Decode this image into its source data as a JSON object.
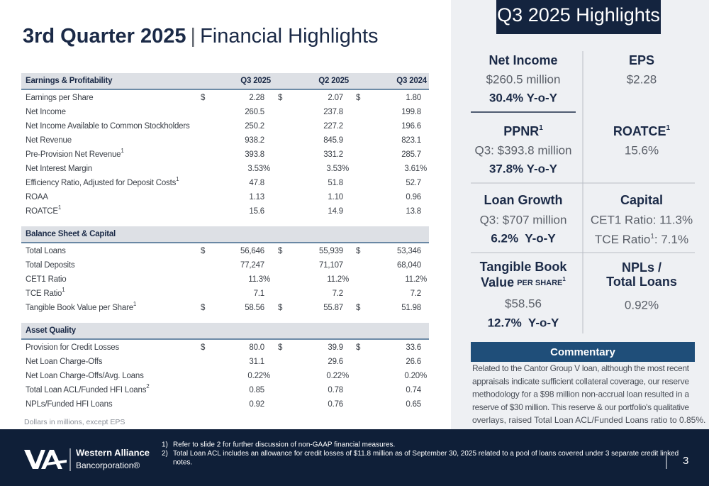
{
  "header": {
    "title_bold": "3rd Quarter 2025",
    "separator": "|",
    "title_rest": "Financial Highlights"
  },
  "table": {
    "columns": [
      "Q3 2025",
      "Q2 2025",
      "Q3 2024"
    ],
    "sections": [
      {
        "title": "Earnings & Profitability",
        "rows": [
          {
            "label": "Earnings per Share",
            "currency": "$",
            "values": [
              "2.28",
              "2.07",
              "1.80"
            ]
          },
          {
            "label": "Net Income",
            "values": [
              "260.5",
              "237.8",
              "199.8"
            ]
          },
          {
            "label": "Net Income Available to Common Stockholders",
            "values": [
              "250.2",
              "227.2",
              "196.6"
            ]
          },
          {
            "label": "Net Revenue",
            "values": [
              "938.2",
              "845.9",
              "823.1"
            ]
          },
          {
            "label": "Pre-Provision Net Revenue",
            "note": "1",
            "values": [
              "393.8",
              "331.2",
              "285.7"
            ]
          },
          {
            "label": "Net Interest Margin",
            "values": [
              "3.53%",
              "3.53%",
              "3.61%"
            ]
          },
          {
            "label": "Efficiency Ratio, Adjusted for Deposit Costs",
            "note": "1",
            "values": [
              "47.8",
              "51.8",
              "52.7"
            ]
          },
          {
            "label": "ROAA",
            "values": [
              "1.13",
              "1.10",
              "0.96"
            ]
          },
          {
            "label": "ROATCE",
            "note": "1",
            "values": [
              "15.6",
              "14.9",
              "13.8"
            ]
          }
        ]
      },
      {
        "title": "Balance Sheet & Capital",
        "rows": [
          {
            "label": "Total Loans",
            "currency": "$",
            "values": [
              "56,646",
              "55,939",
              "53,346"
            ]
          },
          {
            "label": "Total Deposits",
            "values": [
              "77,247",
              "71,107",
              "68,040"
            ]
          },
          {
            "label": "CET1 Ratio",
            "values": [
              "11.3%",
              "11.2%",
              "11.2%"
            ]
          },
          {
            "label": "TCE Ratio",
            "note": "1",
            "values": [
              "7.1",
              "7.2",
              "7.2"
            ]
          },
          {
            "label": "Tangible Book Value per Share",
            "note": "1",
            "currency": "$",
            "values": [
              "58.56",
              "55.87",
              "51.98"
            ]
          }
        ]
      },
      {
        "title": "Asset Quality",
        "rows": [
          {
            "label": "Provision for Credit Losses",
            "currency": "$",
            "values": [
              "80.0",
              "39.9",
              "33.6"
            ]
          },
          {
            "label": "Net Loan Charge-Offs",
            "values": [
              "31.1",
              "29.6",
              "26.6"
            ]
          },
          {
            "label": "Net Loan Charge-Offs/Avg. Loans",
            "values": [
              "0.22%",
              "0.22%",
              "0.20%"
            ]
          },
          {
            "label": "Total Loan ACL/Funded HFI Loans",
            "note": "2",
            "values": [
              "0.85",
              "0.78",
              "0.74"
            ]
          },
          {
            "label": "NPLs/Funded HFI Loans",
            "values": [
              "0.92",
              "0.76",
              "0.65"
            ]
          }
        ]
      }
    ],
    "note": "Dollars in millions, except EPS"
  },
  "highlights": {
    "title": "Q3 2025 Highlights",
    "cells": [
      {
        "title": "Net Income",
        "lines": [
          "$260.5 million",
          "30.4% Y-o-Y"
        ]
      },
      {
        "title": "EPS",
        "lines": [
          "$2.28"
        ]
      },
      {
        "title": "PPNR",
        "title_note": "1",
        "lines": [
          "Q3: $393.8 million",
          "37.8% Y-o-Y"
        ]
      },
      {
        "title": "ROATCE",
        "title_note": "1",
        "lines": [
          "15.6%"
        ]
      },
      {
        "title": "Loan Growth",
        "lines": [
          "Q3: $707 million",
          "6.2%  Y-o-Y"
        ]
      },
      {
        "title": "Capital",
        "lines": [
          "CET1 Ratio: 11.3%"
        ],
        "tce": {
          "label": "TCE Ratio",
          "note": "1",
          "value": ": 7.1%"
        }
      },
      {
        "title": [
          "Tangible Book",
          "Value"
        ],
        "title_small": "PER SHARE",
        "title_note": "1",
        "lines": [
          "$58.56",
          "12.7%  Y-o-Y"
        ]
      },
      {
        "title": [
          "NPLs /",
          "Total Loans"
        ],
        "lines": [
          "0.92%"
        ]
      }
    ]
  },
  "commentary": {
    "title": "Commentary",
    "lines": [
      "Related to the Cantor Group V loan, although the most recent",
      "appraisals indicate sufficient collateral coverage, our reserve",
      "methodology for a $98 million non-accrual loan resulted in a",
      "reserve of $30 million. This reserve & our portfolio's qualitative",
      "overlays, raised Total Loan ACL/Funded Loans ratio to 0.85%."
    ]
  },
  "footer": {
    "brand": [
      "Western Alliance",
      "Bancorporation®"
    ],
    "footnotes": [
      {
        "num": "1)",
        "lines": [
          "Refer to slide 2 for further discussion of non-GAAP financial measures."
        ]
      },
      {
        "num": "2)",
        "lines": [
          "Total Loan ACL includes an allowance for credit losses of $11.8 million as of September 30, 2025 related to a pool of loans covered under 3 separate credit linked",
          "notes."
        ]
      }
    ],
    "page": "3"
  }
}
